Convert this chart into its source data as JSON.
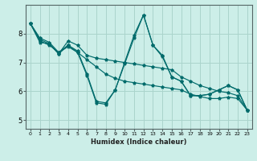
{
  "xlabel": "Humidex (Indice chaleur)",
  "ylabel": "",
  "bg_color": "#cceee8",
  "grid_color": "#aad4cc",
  "line_color": "#006b6b",
  "xlim": [
    -0.5,
    23.5
  ],
  "ylim": [
    4.7,
    9.0
  ],
  "xticks": [
    0,
    1,
    2,
    3,
    4,
    5,
    6,
    7,
    8,
    9,
    10,
    11,
    12,
    13,
    14,
    15,
    16,
    17,
    18,
    19,
    20,
    21,
    22,
    23
  ],
  "yticks": [
    5,
    6,
    7,
    8
  ],
  "series": [
    [
      8.35,
      7.85,
      7.7,
      7.35,
      7.6,
      7.35,
      6.55,
      5.6,
      5.55,
      6.05,
      6.95,
      7.85,
      8.65,
      7.6,
      7.2,
      6.5,
      6.35,
      5.85,
      5.85,
      5.9,
      6.05,
      6.2,
      6.05,
      5.35
    ],
    [
      8.35,
      7.7,
      7.65,
      7.3,
      7.75,
      7.6,
      7.25,
      7.15,
      7.1,
      7.05,
      7.0,
      6.95,
      6.9,
      6.85,
      6.8,
      6.75,
      6.5,
      6.35,
      6.2,
      6.1,
      6.0,
      5.95,
      5.85,
      5.35
    ],
    [
      8.35,
      7.75,
      7.6,
      7.35,
      7.55,
      7.35,
      7.1,
      6.85,
      6.6,
      6.45,
      6.35,
      6.3,
      6.25,
      6.2,
      6.15,
      6.1,
      6.05,
      5.9,
      5.82,
      5.75,
      5.75,
      5.8,
      5.75,
      5.35
    ],
    [
      8.35,
      7.8,
      7.65,
      7.3,
      7.6,
      7.4,
      6.6,
      5.65,
      5.6,
      6.05,
      7.0,
      7.95,
      8.65,
      7.6,
      7.25,
      6.5,
      6.35,
      5.85,
      5.85,
      5.9,
      6.05,
      6.2,
      6.05,
      5.35
    ]
  ]
}
